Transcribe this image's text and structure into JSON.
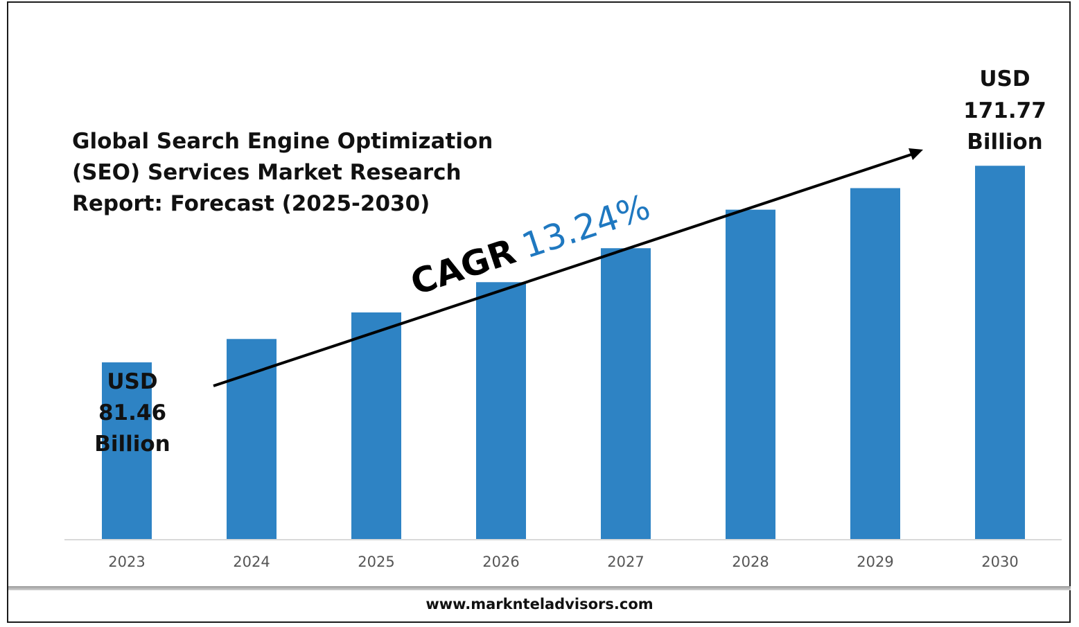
{
  "title_lines": [
    "Global Search Engine Optimization",
    "(SEO) Services Market Research",
    "Report: Forecast (2025-2030)"
  ],
  "cagr": {
    "label": "CAGR",
    "value": "13.24%"
  },
  "callouts": {
    "start": [
      "USD",
      "81.46",
      "Billion"
    ],
    "end": [
      "USD",
      "171.77",
      "Billion"
    ]
  },
  "footer": {
    "url": "www.marknteladvisors.com"
  },
  "colors": {
    "bar": "#2E83C4",
    "cagr_value": "#1F78C0",
    "axis": "#d9d9d9",
    "text": "#111111"
  },
  "chart_data": {
    "type": "bar",
    "categories": [
      "2023",
      "2024",
      "2025",
      "2026",
      "2027",
      "2028",
      "2029",
      "2030"
    ],
    "values": [
      81.46,
      92.2,
      104.4,
      118.3,
      133.9,
      151.6,
      161.5,
      171.77
    ],
    "ylim": [
      0,
      232
    ],
    "title": "Global Search Engine Optimization (SEO) Services Market Research Report: Forecast (2025-2030)",
    "xlabel": "",
    "ylabel": "",
    "grid": false,
    "legend": "none",
    "annotations": [
      "USD 81.46 Billion",
      "USD 171.77 Billion",
      "CAGR 13.24%"
    ]
  }
}
